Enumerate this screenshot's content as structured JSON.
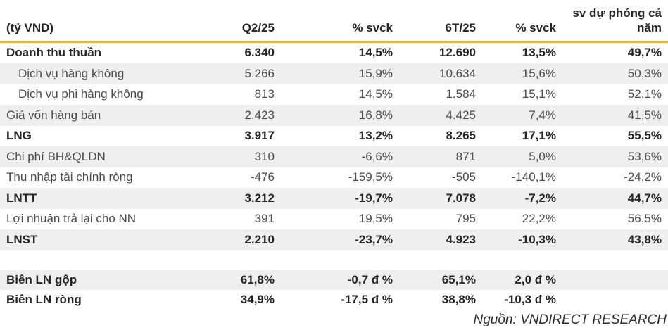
{
  "table": {
    "unit_label": "(tỷ VND)",
    "columns": [
      "Q2/25",
      "% svck",
      "6T/25",
      "% svck",
      "sv dự phóng cả năm"
    ],
    "rows": [
      {
        "label": "Doanh thu thuần",
        "values": [
          "6.340",
          "14,5%",
          "12.690",
          "13,5%",
          "49,7%"
        ]
      },
      {
        "label": "Dịch vụ hàng không",
        "values": [
          "5.266",
          "15,9%",
          "10.634",
          "15,6%",
          "50,3%"
        ]
      },
      {
        "label": "Dịch vụ phi hàng không",
        "values": [
          "813",
          "14,5%",
          "1.584",
          "15,1%",
          "52,1%"
        ]
      },
      {
        "label": "Giá vốn hàng bán",
        "values": [
          "2.423",
          "16,8%",
          "4.425",
          "7,4%",
          "41,5%"
        ]
      },
      {
        "label": "LNG",
        "values": [
          "3.917",
          "13,2%",
          "8.265",
          "17,1%",
          "55,5%"
        ]
      },
      {
        "label": "Chi phí BH&QLDN",
        "values": [
          "310",
          "-6,6%",
          "871",
          "5,0%",
          "53,6%"
        ]
      },
      {
        "label": "Thu nhập tài chính ròng",
        "values": [
          "-476",
          "-159,5%",
          "-505",
          "-140,1%",
          "-24,2%"
        ]
      },
      {
        "label": "LNTT",
        "values": [
          "3.212",
          "-19,7%",
          "7.078",
          "-7,2%",
          "44,7%"
        ]
      },
      {
        "label": "Lợi nhuận trả lại cho NN",
        "values": [
          "391",
          "19,5%",
          "795",
          "22,2%",
          "56,5%"
        ]
      },
      {
        "label": "LNST",
        "values": [
          "2.210",
          "-23,7%",
          "4.923",
          "-10,3%",
          "43,8%"
        ]
      }
    ],
    "margin_rows": [
      {
        "label": "Biên LN gộp",
        "values": [
          "61,8%",
          "-0,7 đ %",
          "65,1%",
          "2,0 đ %",
          ""
        ]
      },
      {
        "label": "Biên LN ròng",
        "values": [
          "34,9%",
          "-17,5 đ %",
          "38,8%",
          "-10,3 đ %",
          ""
        ]
      }
    ],
    "source": "Nguồn: VNDIRECT RESEARCH"
  },
  "colors": {
    "accent_line": "#f2b50f",
    "row_stripe": "#efefef",
    "text_regular": "#4b4b4b",
    "text_bold": "#262626"
  }
}
